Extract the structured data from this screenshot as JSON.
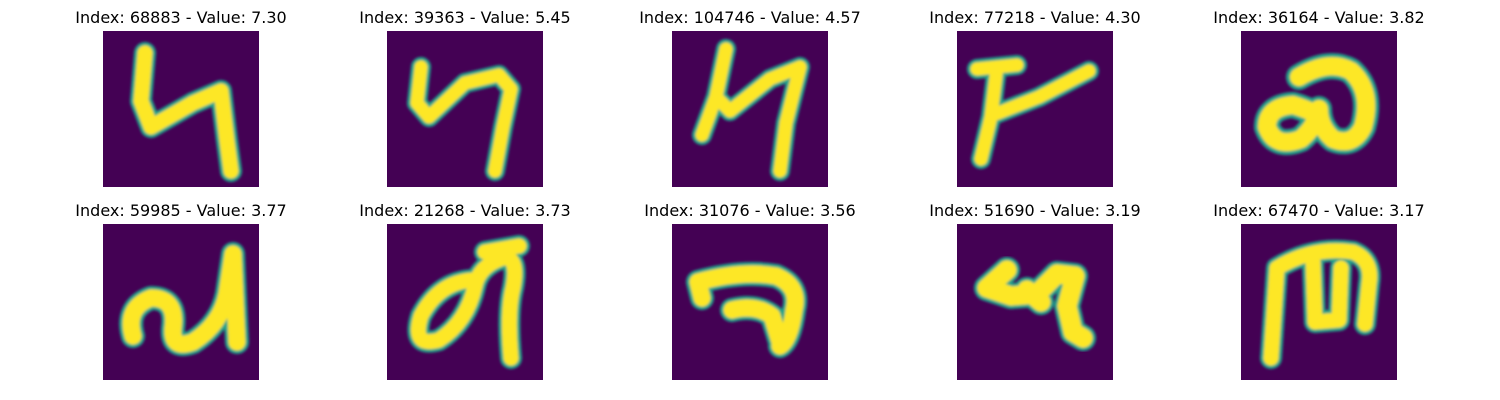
{
  "chart_data": {
    "type": "image_grid",
    "colormap": "viridis",
    "background_color": "#440154",
    "stroke_color": "#fde725",
    "edge_color": "#21a38a",
    "grid": {
      "rows": 2,
      "cols": 5
    },
    "panels": [
      {
        "index": 68883,
        "value": 7.3,
        "title": "Index: 68883 - Value: 7.30"
      },
      {
        "index": 39363,
        "value": 5.45,
        "title": "Index: 39363 - Value: 5.45"
      },
      {
        "index": 104746,
        "value": 4.57,
        "title": "Index: 104746 - Value: 4.57"
      },
      {
        "index": 77218,
        "value": 4.3,
        "title": "Index: 77218 - Value: 4.30"
      },
      {
        "index": 36164,
        "value": 3.82,
        "title": "Index: 36164 - Value: 3.82"
      },
      {
        "index": 59985,
        "value": 3.77,
        "title": "Index: 59985 - Value: 3.77"
      },
      {
        "index": 21268,
        "value": 3.73,
        "title": "Index: 21268 - Value: 3.73"
      },
      {
        "index": 31076,
        "value": 3.56,
        "title": "Index: 31076 - Value: 3.56"
      },
      {
        "index": 51690,
        "value": 3.19,
        "title": "Index: 51690 - Value: 3.19"
      },
      {
        "index": 67470,
        "value": 3.17,
        "title": "Index: 67470 - Value: 3.17"
      }
    ]
  }
}
